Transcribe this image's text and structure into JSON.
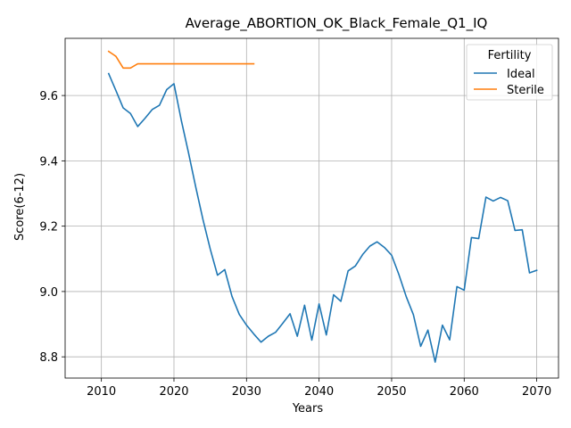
{
  "chart_data": {
    "type": "line",
    "title": "Average_ABORTION_OK_Black_Female_Q1_IQ",
    "xlabel": "Years",
    "ylabel": "Score(6-12)",
    "xlim": [
      2005,
      2073
    ],
    "ylim": [
      8.735,
      9.775
    ],
    "xticks": [
      2010,
      2020,
      2030,
      2040,
      2050,
      2060,
      2070
    ],
    "yticks": [
      8.8,
      9.0,
      9.2,
      9.4,
      9.6
    ],
    "ytick_labels": [
      "8.8",
      "9.0",
      "9.2",
      "9.4",
      "9.6"
    ],
    "grid": true,
    "legend": {
      "title": "Fertility",
      "placement": "top-right"
    },
    "series": [
      {
        "name": "Ideal",
        "color": "#1f77b4",
        "x": [
          2011,
          2012,
          2013,
          2014,
          2015,
          2016,
          2017,
          2018,
          2019,
          2020,
          2021,
          2022,
          2023,
          2024,
          2025,
          2026,
          2027,
          2028,
          2029,
          2030,
          2031,
          2032,
          2033,
          2034,
          2035,
          2036,
          2037,
          2038,
          2039,
          2040,
          2041,
          2042,
          2043,
          2044,
          2045,
          2046,
          2047,
          2048,
          2049,
          2050,
          2051,
          2052,
          2053,
          2054,
          2055,
          2056,
          2057,
          2058,
          2059,
          2060,
          2061,
          2062,
          2063,
          2064,
          2065,
          2066,
          2067,
          2068,
          2069,
          2070
        ],
        "y": [
          9.667,
          9.615,
          9.562,
          9.545,
          9.505,
          9.53,
          9.557,
          9.57,
          9.618,
          9.636,
          9.525,
          9.425,
          9.32,
          9.22,
          9.13,
          9.05,
          9.067,
          8.985,
          8.93,
          8.897,
          8.87,
          8.845,
          8.863,
          8.875,
          8.903,
          8.932,
          8.863,
          8.958,
          8.851,
          8.962,
          8.867,
          8.99,
          8.97,
          9.063,
          9.078,
          9.113,
          9.139,
          9.152,
          9.135,
          9.111,
          9.052,
          8.985,
          8.929,
          8.832,
          8.882,
          8.784,
          8.897,
          8.852,
          9.015,
          9.004,
          9.165,
          9.162,
          9.289,
          9.277,
          9.288,
          9.278,
          9.187,
          9.189,
          9.057,
          9.065
        ]
      },
      {
        "name": "Sterile",
        "color": "#ff7f0e",
        "x": [
          2011,
          2012,
          2013,
          2014,
          2015,
          2016,
          2017,
          2018,
          2019,
          2020,
          2021,
          2022,
          2023,
          2024,
          2025,
          2026,
          2027,
          2028,
          2029,
          2030,
          2031
        ],
        "y": [
          9.735,
          9.72,
          9.684,
          9.684,
          9.697,
          9.697,
          9.697,
          9.697,
          9.697,
          9.697,
          9.697,
          9.697,
          9.697,
          9.697,
          9.697,
          9.697,
          9.697,
          9.697,
          9.697,
          9.697,
          9.697
        ]
      }
    ]
  }
}
